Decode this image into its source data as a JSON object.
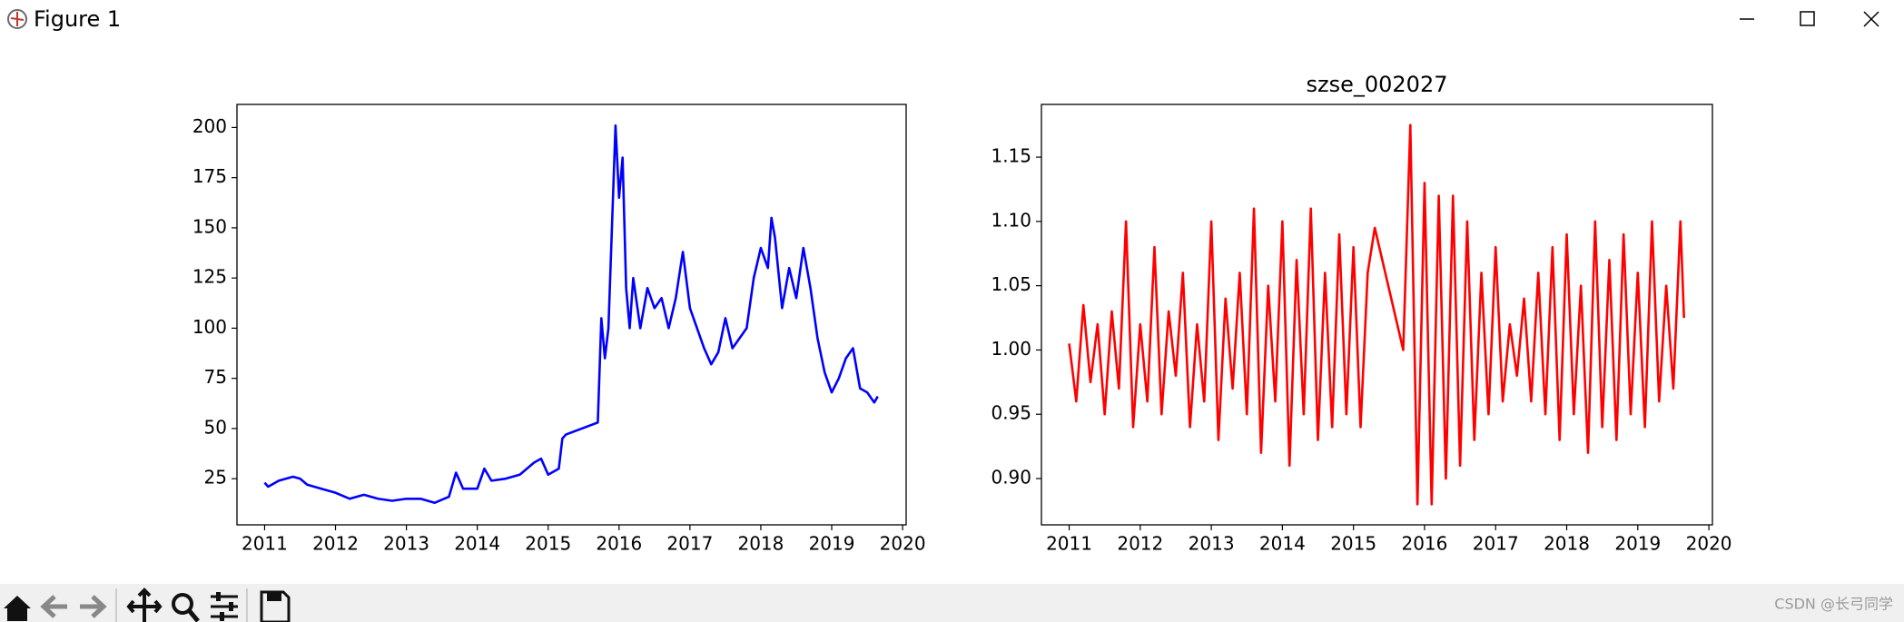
{
  "window": {
    "title": "Figure 1"
  },
  "chart_data": [
    {
      "type": "line",
      "color": "#0000ff",
      "x": [
        2011.0,
        2011.05,
        2011.2,
        2011.4,
        2011.5,
        2011.6,
        2011.8,
        2012.0,
        2012.2,
        2012.4,
        2012.6,
        2012.8,
        2013.0,
        2013.2,
        2013.4,
        2013.6,
        2013.7,
        2013.8,
        2014.0,
        2014.1,
        2014.2,
        2014.4,
        2014.6,
        2014.8,
        2014.9,
        2015.0,
        2015.15,
        2015.2,
        2015.25,
        2015.7,
        2015.75,
        2015.8,
        2015.85,
        2015.95,
        2016.0,
        2016.05,
        2016.1,
        2016.15,
        2016.2,
        2016.3,
        2016.4,
        2016.5,
        2016.6,
        2016.7,
        2016.8,
        2016.9,
        2017.0,
        2017.1,
        2017.2,
        2017.3,
        2017.4,
        2017.5,
        2017.6,
        2017.7,
        2017.8,
        2017.9,
        2018.0,
        2018.1,
        2018.15,
        2018.2,
        2018.3,
        2018.4,
        2018.5,
        2018.6,
        2018.7,
        2018.8,
        2018.9,
        2019.0,
        2019.1,
        2019.2,
        2019.3,
        2019.4,
        2019.5,
        2019.6,
        2019.65
      ],
      "values": [
        23,
        21,
        24,
        26,
        25,
        22,
        20,
        18,
        15,
        17,
        15,
        14,
        15,
        15,
        13,
        16,
        28,
        20,
        20,
        30,
        24,
        25,
        27,
        33,
        35,
        27,
        30,
        45,
        47,
        53,
        105,
        85,
        100,
        201,
        165,
        185,
        120,
        100,
        125,
        100,
        120,
        110,
        115,
        100,
        115,
        138,
        110,
        100,
        90,
        82,
        88,
        105,
        90,
        95,
        100,
        125,
        140,
        130,
        155,
        145,
        110,
        130,
        115,
        140,
        120,
        95,
        78,
        68,
        75,
        85,
        90,
        70,
        68,
        63,
        66
      ],
      "xlim": [
        2010.61,
        2020.05
      ],
      "xticks": [
        2011,
        2012,
        2013,
        2014,
        2015,
        2016,
        2017,
        2018,
        2019,
        2020
      ],
      "ylim": [
        2,
        211.5
      ],
      "yticks": [
        25,
        50,
        75,
        100,
        125,
        150,
        175,
        200
      ]
    },
    {
      "type": "line",
      "title": "szse_002027",
      "color": "#ff0000",
      "x": [
        2011.0,
        2011.1,
        2011.2,
        2011.3,
        2011.4,
        2011.5,
        2011.6,
        2011.7,
        2011.8,
        2011.9,
        2012.0,
        2012.1,
        2012.2,
        2012.3,
        2012.4,
        2012.5,
        2012.6,
        2012.7,
        2012.8,
        2012.9,
        2013.0,
        2013.1,
        2013.2,
        2013.3,
        2013.4,
        2013.5,
        2013.6,
        2013.7,
        2013.8,
        2013.9,
        2014.0,
        2014.1,
        2014.2,
        2014.3,
        2014.4,
        2014.5,
        2014.6,
        2014.7,
        2014.8,
        2014.9,
        2015.0,
        2015.1,
        2015.2,
        2015.3,
        2015.7,
        2015.8,
        2015.9,
        2016.0,
        2016.1,
        2016.2,
        2016.3,
        2016.4,
        2016.5,
        2016.6,
        2016.7,
        2016.8,
        2016.9,
        2017.0,
        2017.1,
        2017.2,
        2017.3,
        2017.4,
        2017.5,
        2017.6,
        2017.7,
        2017.8,
        2017.9,
        2018.0,
        2018.1,
        2018.2,
        2018.3,
        2018.4,
        2018.5,
        2018.6,
        2018.7,
        2018.8,
        2018.9,
        2019.0,
        2019.1,
        2019.2,
        2019.3,
        2019.4,
        2019.5,
        2019.6,
        2019.65
      ],
      "values": [
        1.005,
        0.96,
        1.035,
        0.975,
        1.02,
        0.95,
        1.03,
        0.97,
        1.1,
        0.94,
        1.02,
        0.96,
        1.08,
        0.95,
        1.03,
        0.98,
        1.06,
        0.94,
        1.02,
        0.96,
        1.1,
        0.93,
        1.04,
        0.97,
        1.06,
        0.95,
        1.11,
        0.92,
        1.05,
        0.96,
        1.1,
        0.91,
        1.07,
        0.95,
        1.11,
        0.93,
        1.06,
        0.94,
        1.09,
        0.95,
        1.08,
        0.94,
        1.06,
        1.095,
        1.0,
        1.175,
        0.88,
        1.13,
        0.88,
        1.12,
        0.9,
        1.12,
        0.91,
        1.1,
        0.93,
        1.06,
        0.95,
        1.08,
        0.96,
        1.02,
        0.98,
        1.04,
        0.96,
        1.06,
        0.95,
        1.08,
        0.93,
        1.09,
        0.95,
        1.05,
        0.92,
        1.1,
        0.94,
        1.07,
        0.93,
        1.09,
        0.95,
        1.06,
        0.94,
        1.1,
        0.96,
        1.05,
        0.97,
        1.1,
        1.025
      ],
      "xlim": [
        2010.61,
        2020.05
      ],
      "xticks": [
        2011,
        2012,
        2013,
        2014,
        2015,
        2016,
        2017,
        2018,
        2019,
        2020
      ],
      "ylim": [
        0.864,
        1.191
      ],
      "yticks": [
        {
          "value": 0.9,
          "label": "0.90"
        },
        0.95,
        {
          "value": 1.0,
          "label": "1.00"
        },
        1.05,
        {
          "value": 1.1,
          "label": "1.10"
        },
        1.15
      ]
    }
  ],
  "watermark": "CSDN @长弓同学"
}
